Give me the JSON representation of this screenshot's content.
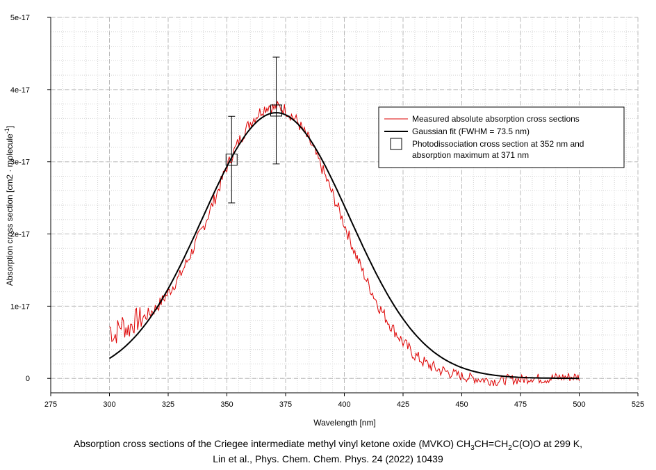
{
  "chart_data": {
    "type": "line",
    "xlabel": "Wavelength [nm]",
    "ylabel": "Absorption cross section [cm2 · molecule",
    "ylabel_sup": "-1",
    "ylabel_close": "]",
    "xlim": [
      275,
      525
    ],
    "ylim": [
      -2e-18,
      5e-17
    ],
    "xticks": [
      275,
      300,
      325,
      350,
      375,
      400,
      425,
      450,
      475,
      500,
      525
    ],
    "xtick_labels": [
      "275",
      "300",
      "325",
      "350",
      "375",
      "400",
      "425",
      "450",
      "475",
      "500",
      "525"
    ],
    "yticks": [
      0,
      1e-17,
      2e-17,
      3e-17,
      4e-17,
      5e-17
    ],
    "ytick_labels": [
      "0",
      "1e-17",
      "2e-17",
      "3e-17",
      "4e-17",
      "5e-17"
    ],
    "grid": true,
    "legend_position": "top-right",
    "series": [
      {
        "name": "Measured absolute absorption cross sections",
        "color": "#dd0000",
        "kind": "noisy-line",
        "x": [
          300,
          302,
          305,
          308,
          310,
          315,
          320,
          325,
          330,
          335,
          340,
          345,
          350,
          355,
          360,
          365,
          368,
          370,
          372,
          375,
          380,
          385,
          390,
          395,
          400,
          405,
          410,
          415,
          420,
          425,
          430,
          435,
          440,
          445,
          450,
          455,
          460,
          465,
          470,
          475,
          480,
          485,
          490,
          495,
          500
        ],
        "y": [
          7.2e-18,
          5.8e-18,
          7.6e-18,
          6.8e-18,
          7.8e-18,
          8.5e-18,
          9.8e-18,
          1.18e-17,
          1.42e-17,
          1.75e-17,
          2.1e-17,
          2.5e-17,
          2.93e-17,
          3.28e-17,
          3.55e-17,
          3.72e-17,
          3.78e-17,
          3.74e-17,
          3.76e-17,
          3.72e-17,
          3.56e-17,
          3.3e-17,
          2.95e-17,
          2.55e-17,
          2.14e-17,
          1.7e-17,
          1.32e-17,
          9.8e-18,
          7.2e-18,
          5e-18,
          3.2e-18,
          2e-18,
          1.2e-18,
          8e-19,
          3e-19,
          0,
          -2e-19,
          -4e-19,
          -1e-19,
          -2e-19,
          1e-19,
          -1e-19,
          1e-19,
          2e-19,
          2e-19
        ]
      },
      {
        "name": "Gaussian fit (FWHM = 73.5 nm)",
        "color": "#000000",
        "kind": "gaussian",
        "amplitude": 3.68e-17,
        "center": 371,
        "fwhm": 73.5,
        "x_range": [
          300,
          500
        ]
      },
      {
        "name": "Photodissociation cross section at 352 nm and",
        "name_line2": "absorption maximum at 371 nm",
        "kind": "markers-with-errorbars",
        "x": [
          352,
          371
        ],
        "y": [
          3.03e-17,
          3.71e-17
        ],
        "yerr": [
          6e-18,
          7.4e-18
        ]
      }
    ],
    "caption": {
      "line1_a": "Absorption cross sections of the Criegee intermediate methyl vinyl ketone oxide (MVKO) CH",
      "line1_sub1": "3",
      "line1_b": "CH=CH",
      "line1_sub2": "2",
      "line1_c": "C(O)O at 299 K,",
      "line2": "Lin et al., Phys. Chem. Chem. Phys. 24 (2022) 10439"
    }
  }
}
